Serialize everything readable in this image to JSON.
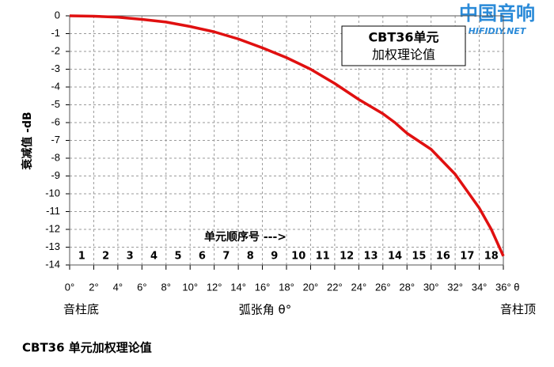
{
  "chart_data": {
    "type": "line",
    "ylabel": "衰减值 -dB",
    "xlabel": "弧张角 θ°",
    "x_left_label": "音柱底",
    "x_right_label": "音柱顶",
    "annotation": [
      "CBT36单元",
      "加权理论值"
    ],
    "element_axis_label": "单元顺序号 --->",
    "element_numbers": [
      1,
      2,
      3,
      4,
      5,
      6,
      7,
      8,
      9,
      10,
      11,
      12,
      13,
      14,
      15,
      16,
      17,
      18
    ],
    "caption": "CBT36 单元加权理论值",
    "logo": [
      "中国音响",
      "HIFIDIY.NET"
    ],
    "x": [
      0,
      2,
      4,
      6,
      8,
      10,
      12,
      14,
      16,
      18,
      20,
      22,
      24,
      26,
      27,
      28,
      30,
      32,
      34,
      35,
      36
    ],
    "series": [
      {
        "name": "CBT36",
        "color": "#e01010",
        "values": [
          0,
          -0.02,
          -0.08,
          -0.2,
          -0.35,
          -0.6,
          -0.9,
          -1.3,
          -1.8,
          -2.35,
          -3.0,
          -3.8,
          -4.7,
          -5.5,
          -6.0,
          -6.6,
          -7.5,
          -8.9,
          -10.8,
          -12.0,
          -13.5
        ]
      }
    ],
    "xlim": [
      0,
      36
    ],
    "ylim": [
      -14,
      0
    ],
    "xticks": [
      {
        "value": 0,
        "label": "0°"
      },
      {
        "value": 2,
        "label": "2°"
      },
      {
        "value": 4,
        "label": "4°"
      },
      {
        "value": 6,
        "label": "6°"
      },
      {
        "value": 8,
        "label": "8°"
      },
      {
        "value": 10,
        "label": "10°"
      },
      {
        "value": 12,
        "label": "12°"
      },
      {
        "value": 14,
        "label": "14°"
      },
      {
        "value": 16,
        "label": "16°"
      },
      {
        "value": 18,
        "label": "18°"
      },
      {
        "value": 20,
        "label": "20°"
      },
      {
        "value": 22,
        "label": "22°"
      },
      {
        "value": 24,
        "label": "24°"
      },
      {
        "value": 26,
        "label": "26°"
      },
      {
        "value": 28,
        "label": "28°"
      },
      {
        "value": 30,
        "label": "30°"
      },
      {
        "value": 32,
        "label": "32°"
      },
      {
        "value": 34,
        "label": "34°"
      },
      {
        "value": 36,
        "label": "36° θ"
      }
    ],
    "yticks": [
      0,
      -1,
      -2,
      -3,
      -4,
      -5,
      -6,
      -7,
      -8,
      -9,
      -10,
      -11,
      -12,
      -13,
      -14
    ],
    "grid": true
  }
}
